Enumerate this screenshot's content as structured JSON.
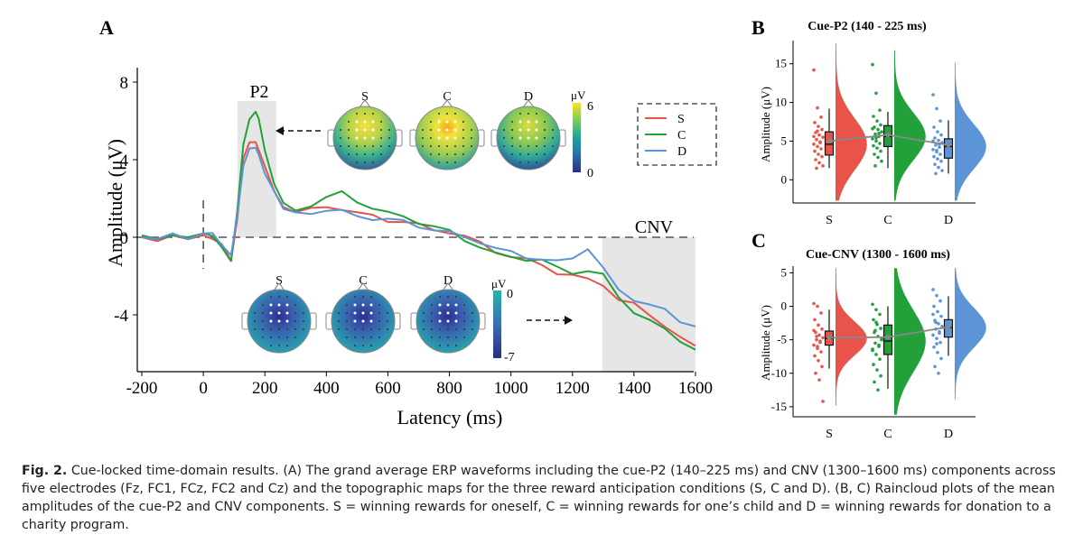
{
  "panel_labels": {
    "a": "A",
    "b": "B",
    "c": "C"
  },
  "caption": {
    "label": "Fig. 2.",
    "text": "Cue-locked time-domain results. (A) The grand average ERP waveforms including the cue-P2 (140–225 ms) and CNV (1300–1600 ms) components across five electrodes (Fz, FC1, FCz, FC2 and Cz) and the topographic maps for the three reward anticipation conditions (S, C and D). (B, C) Raincloud plots of the mean amplitudes of the cue-P2 and CNV components. S = winning rewards for oneself, C = winning rewards for one’s child and D = winning rewards for donation to a charity program."
  },
  "colors": {
    "S": "#e8534a",
    "C": "#22a03a",
    "D": "#5b95d6",
    "shade": "#e6e6e6"
  },
  "topomaps": {
    "p2": {
      "labels": [
        "S",
        "C",
        "D"
      ],
      "unit": "μV",
      "max": "6",
      "min": "0"
    },
    "cnv": {
      "labels": [
        "S",
        "C",
        "D"
      ],
      "unit": "μV",
      "max": "0",
      "min": "-7"
    }
  },
  "chart_data": [
    {
      "type": "line",
      "xlabel": "Latency (ms)",
      "ylabel": "Amplitude (μV)",
      "xlim": [
        -200,
        1600
      ],
      "ylim": [
        -6,
        8
      ],
      "xticks": [
        "-200",
        "0",
        "200",
        "400",
        "600",
        "800",
        "1000",
        "1200",
        "1400",
        "1600"
      ],
      "yticks": [
        "8",
        "4",
        "0",
        "-4"
      ],
      "annotations": [
        "P2",
        "CNV"
      ],
      "shaded_windows": [
        [
          140,
          225
        ],
        [
          1300,
          1600
        ]
      ],
      "legend": {
        "position": "top-right",
        "entries": [
          "S",
          "C",
          "D"
        ]
      },
      "series": [
        {
          "name": "S",
          "x": [
            -200,
            -150,
            -100,
            -50,
            0,
            30,
            60,
            90,
            110,
            130,
            150,
            170,
            180,
            200,
            230,
            260,
            300,
            350,
            400,
            450,
            500,
            550,
            600,
            650,
            700,
            750,
            800,
            850,
            900,
            950,
            1000,
            1050,
            1100,
            1150,
            1200,
            1250,
            1300,
            1350,
            1400,
            1450,
            1500,
            1550,
            1600
          ],
          "y": [
            0.0,
            -0.2,
            0.1,
            -0.1,
            0.1,
            0.0,
            -0.4,
            -1.2,
            1.0,
            4.0,
            4.8,
            5.0,
            4.6,
            3.6,
            2.4,
            1.6,
            1.3,
            1.4,
            1.6,
            1.5,
            1.2,
            1.1,
            0.9,
            0.8,
            0.6,
            0.4,
            0.3,
            0.0,
            -0.3,
            -0.7,
            -1.0,
            -1.2,
            -1.4,
            -1.8,
            -2.0,
            -2.2,
            -2.4,
            -3.2,
            -3.5,
            -4.0,
            -4.5,
            -5.2,
            -5.6
          ]
        },
        {
          "name": "C",
          "x": [
            -200,
            -150,
            -100,
            -50,
            0,
            30,
            60,
            90,
            110,
            130,
            150,
            170,
            180,
            200,
            230,
            260,
            300,
            350,
            400,
            450,
            500,
            550,
            600,
            650,
            700,
            750,
            800,
            850,
            900,
            950,
            1000,
            1050,
            1100,
            1150,
            1200,
            1250,
            1300,
            1350,
            1400,
            1450,
            1500,
            1550,
            1600
          ],
          "y": [
            0.1,
            -0.1,
            0.1,
            0.0,
            0.2,
            0.0,
            -0.5,
            -1.2,
            1.2,
            4.8,
            6.2,
            6.4,
            6.0,
            4.5,
            2.8,
            1.7,
            1.4,
            1.7,
            2.0,
            2.3,
            1.9,
            1.5,
            1.2,
            1.1,
            0.8,
            0.5,
            0.3,
            -0.1,
            -0.5,
            -0.9,
            -1.0,
            -1.1,
            -1.2,
            -1.6,
            -1.8,
            -1.7,
            -2.0,
            -3.1,
            -3.8,
            -4.3,
            -4.8,
            -5.3,
            -5.8
          ]
        },
        {
          "name": "D",
          "x": [
            -200,
            -150,
            -100,
            -50,
            0,
            30,
            60,
            90,
            110,
            130,
            150,
            170,
            180,
            200,
            230,
            260,
            300,
            350,
            400,
            450,
            500,
            550,
            600,
            650,
            700,
            750,
            800,
            850,
            900,
            950,
            1000,
            1050,
            1100,
            1150,
            1200,
            1250,
            1300,
            1350,
            1400,
            1450,
            1500,
            1550,
            1600
          ],
          "y": [
            0.0,
            -0.1,
            0.2,
            -0.1,
            0.2,
            0.1,
            -0.3,
            -1.0,
            1.0,
            3.8,
            4.6,
            4.5,
            4.2,
            3.4,
            2.3,
            1.5,
            1.2,
            1.3,
            1.4,
            1.3,
            1.1,
            1.0,
            0.9,
            0.8,
            0.6,
            0.4,
            0.2,
            0.0,
            -0.2,
            -0.6,
            -0.8,
            -1.0,
            -1.1,
            -1.3,
            -1.1,
            -0.5,
            -1.6,
            -2.8,
            -3.2,
            -3.4,
            -3.8,
            -4.4,
            -4.6
          ]
        }
      ]
    },
    {
      "type": "scatter",
      "title": "Cue-P2 (140 - 225 ms)",
      "ylabel": "Amplitude (μV)",
      "categories": [
        "S",
        "C",
        "D"
      ],
      "ylim": [
        -3,
        18
      ],
      "yticks": [
        "0",
        "5",
        "10",
        "15"
      ],
      "summary": [
        {
          "name": "S",
          "q1": 3.2,
          "median": 4.6,
          "q3": 6.2,
          "whisker_low": 1.5,
          "whisker_high": 9.2,
          "mean": 5.0,
          "points": [
            14.2,
            9.3,
            8.1,
            7.4,
            6.9,
            6.5,
            6.1,
            5.8,
            5.5,
            5.2,
            4.9,
            4.6,
            4.3,
            4.0,
            3.7,
            3.3,
            3.0,
            2.6,
            2.2,
            1.8,
            1.5,
            4.8,
            5.6,
            6.3
          ]
        },
        {
          "name": "C",
          "q1": 4.3,
          "median": 5.6,
          "q3": 7.0,
          "whisker_low": 1.5,
          "whisker_high": 8.8,
          "mean": 5.8,
          "points": [
            14.9,
            11.2,
            9.0,
            8.2,
            7.6,
            7.1,
            6.8,
            6.5,
            6.2,
            5.9,
            5.6,
            5.3,
            5.0,
            4.7,
            4.4,
            4.1,
            3.7,
            3.3,
            2.9,
            2.4,
            1.8,
            6.0,
            6.6,
            5.4
          ]
        },
        {
          "name": "D",
          "q1": 2.8,
          "median": 4.3,
          "q3": 5.3,
          "whisker_low": 0.8,
          "whisker_high": 7.7,
          "mean": 4.5,
          "points": [
            11.0,
            9.2,
            7.6,
            6.8,
            6.2,
            5.8,
            5.4,
            5.1,
            4.8,
            4.5,
            4.2,
            3.9,
            3.6,
            3.3,
            3.0,
            2.7,
            2.4,
            2.0,
            1.6,
            1.2,
            0.8,
            4.6,
            5.0,
            3.8
          ]
        }
      ]
    },
    {
      "type": "scatter",
      "title": "Cue-CNV (1300 - 1600 ms)",
      "ylabel": "Amplitude (μV)",
      "categories": [
        "S",
        "C",
        "D"
      ],
      "ylim": [
        -16.5,
        6
      ],
      "yticks": [
        "5",
        "0",
        "-5",
        "-10",
        "-15"
      ],
      "summary": [
        {
          "name": "S",
          "q1": -5.8,
          "median": -4.8,
          "q3": -3.7,
          "whisker_low": -9.3,
          "whisker_high": -0.5,
          "mean": -4.7,
          "points": [
            0.4,
            0.0,
            -1.0,
            -2.0,
            -2.8,
            -3.4,
            -3.9,
            -4.3,
            -4.7,
            -5.0,
            -5.4,
            -5.8,
            -6.3,
            -6.8,
            -7.4,
            -8.1,
            -9.0,
            -10.0,
            -11.0,
            -14.2,
            -4.5,
            -5.2,
            -3.6,
            -6.0
          ]
        },
        {
          "name": "C",
          "q1": -7.2,
          "median": -5.2,
          "q3": -2.8,
          "whisker_low": -12.3,
          "whisker_high": 0.0,
          "mean": -4.6,
          "points": [
            0.3,
            -0.5,
            -1.2,
            -2.0,
            -2.7,
            -3.3,
            -3.9,
            -4.5,
            -5.0,
            -5.5,
            -6.0,
            -6.6,
            -7.2,
            -7.9,
            -8.7,
            -9.5,
            -10.4,
            -11.3,
            -12.5,
            -4.8,
            -3.6,
            -5.8,
            -6.4,
            -2.4
          ]
        },
        {
          "name": "D",
          "q1": -4.6,
          "median": -3.2,
          "q3": -2.0,
          "whisker_low": -7.4,
          "whisker_high": 1.5,
          "mean": -3.1,
          "points": [
            2.5,
            1.6,
            0.8,
            0.0,
            -0.8,
            -1.5,
            -2.1,
            -2.6,
            -3.0,
            -3.4,
            -3.8,
            -4.3,
            -4.8,
            -5.4,
            -6.1,
            -6.9,
            -7.8,
            -9.0,
            -10.0,
            -3.1,
            -2.4,
            -4.0,
            -1.2,
            -5.6
          ]
        }
      ]
    }
  ]
}
